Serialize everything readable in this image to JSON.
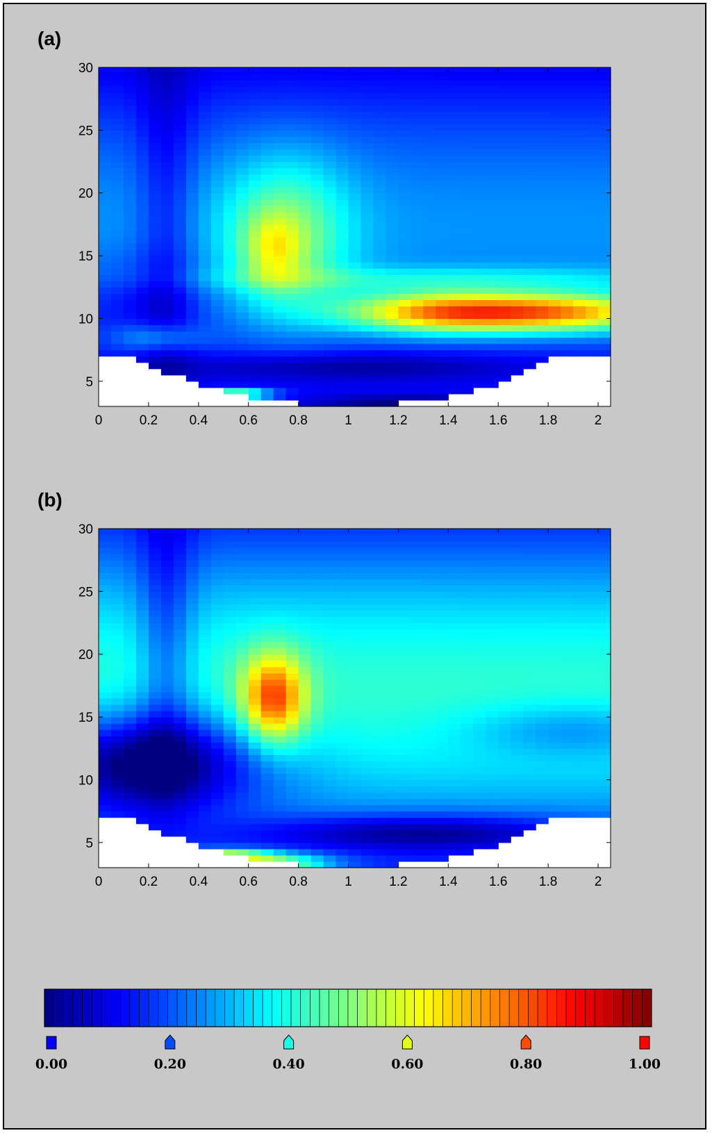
{
  "panels": [
    {
      "label": "(a)",
      "chart_data": {
        "type": "heatmap",
        "title": "",
        "xlabel": "",
        "ylabel": "",
        "xlim": [
          0,
          2.05
        ],
        "ylim": [
          3,
          30
        ],
        "x_ticks": [
          "0",
          "0.2",
          "0.4",
          "0.6",
          "0.8",
          "1",
          "1.2",
          "1.4",
          "1.6",
          "1.8",
          "2"
        ],
        "y_ticks": [
          "5",
          "10",
          "15",
          "20",
          "25",
          "30"
        ],
        "colormap": "jet",
        "clim": [
          0,
          1
        ],
        "cell_width": 0.05,
        "cell_height": 0.5,
        "mask_bottom_edge": [
          [
            0.0,
            7.0
          ],
          [
            0.15,
            7.0
          ],
          [
            0.3,
            5.5
          ],
          [
            0.5,
            4.2
          ],
          [
            0.7,
            3.4
          ],
          [
            1.0,
            3.0
          ],
          [
            1.3,
            3.4
          ],
          [
            1.5,
            4.2
          ],
          [
            1.7,
            5.5
          ],
          [
            1.85,
            7.0
          ],
          [
            2.05,
            7.0
          ]
        ],
        "features": [
          {
            "name": "background",
            "x": 1.0,
            "y": 17.0,
            "sx": 10,
            "sy": 10,
            "value": 0.27
          },
          {
            "name": "left_column_low",
            "x": 0.27,
            "y": 18.0,
            "sx": 0.08,
            "sy": 12,
            "value": -0.1
          },
          {
            "name": "lower_left_low",
            "x": 0.15,
            "y": 11.5,
            "sx": 0.2,
            "sy": 2.5,
            "value": -0.08
          },
          {
            "name": "mid_green",
            "x": 0.75,
            "y": 16.5,
            "sx": 0.18,
            "sy": 4.5,
            "value": 0.25
          },
          {
            "name": "mid_green_peak",
            "x": 0.7,
            "y": 15.5,
            "sx": 0.08,
            "sy": 2.0,
            "value": 0.15
          },
          {
            "name": "band_13",
            "x": 1.4,
            "y": 13.2,
            "sx": 0.7,
            "sy": 0.7,
            "value": 0.12
          },
          {
            "name": "orange_band",
            "x": 1.75,
            "y": 10.5,
            "sx": 0.4,
            "sy": 1.1,
            "value": 0.55
          },
          {
            "name": "orange_band_left",
            "x": 1.3,
            "y": 10.5,
            "sx": 0.25,
            "sy": 1.2,
            "value": 0.25
          },
          {
            "name": "low_strip_6",
            "x": 1.0,
            "y": 6.2,
            "sx": 0.55,
            "sy": 0.8,
            "value": -0.12
          },
          {
            "name": "cyan_spot",
            "x": 0.23,
            "y": 8.5,
            "sx": 0.12,
            "sy": 0.8,
            "value": 0.15
          },
          {
            "name": "row4_yellow",
            "x": 0.55,
            "y": 4.0,
            "sx": 0.1,
            "sy": 0.3,
            "value": 0.45
          },
          {
            "name": "row3_low",
            "x": 1.25,
            "y": 3.3,
            "sx": 0.25,
            "sy": 0.4,
            "value": -0.12
          }
        ]
      }
    },
    {
      "label": "(b)",
      "chart_data": {
        "type": "heatmap",
        "title": "",
        "xlabel": "",
        "ylabel": "",
        "xlim": [
          0,
          2.05
        ],
        "ylim": [
          3,
          30
        ],
        "x_ticks": [
          "0",
          "0.2",
          "0.4",
          "0.6",
          "0.8",
          "1",
          "1.2",
          "1.4",
          "1.6",
          "1.8",
          "2"
        ],
        "y_ticks": [
          "5",
          "10",
          "15",
          "20",
          "25",
          "30"
        ],
        "colormap": "jet",
        "clim": [
          0,
          1
        ],
        "cell_width": 0.05,
        "cell_height": 0.5,
        "mask_bottom_edge": [
          [
            0.0,
            7.0
          ],
          [
            0.15,
            7.0
          ],
          [
            0.3,
            5.5
          ],
          [
            0.5,
            4.2
          ],
          [
            0.7,
            3.4
          ],
          [
            1.0,
            3.0
          ],
          [
            1.3,
            3.4
          ],
          [
            1.5,
            4.2
          ],
          [
            1.7,
            5.5
          ],
          [
            1.85,
            7.0
          ],
          [
            2.05,
            7.0
          ]
        ],
        "features": [
          {
            "name": "background",
            "x": 1.0,
            "y": 17.0,
            "sx": 10,
            "sy": 10,
            "value": 0.42
          },
          {
            "name": "left_column_low",
            "x": 0.27,
            "y": 21.0,
            "sx": 0.08,
            "sy": 8,
            "value": -0.15
          },
          {
            "name": "dark_blue_region",
            "x": 0.2,
            "y": 11.5,
            "sx": 0.32,
            "sy": 2.8,
            "value": -0.38
          },
          {
            "name": "red_hotspot",
            "x": 0.7,
            "y": 16.5,
            "sx": 0.09,
            "sy": 2.5,
            "value": 0.42
          },
          {
            "name": "right_low_band",
            "x": 1.9,
            "y": 14.0,
            "sx": 0.3,
            "sy": 1.5,
            "value": -0.12
          },
          {
            "name": "low_strip_6",
            "x": 1.3,
            "y": 5.8,
            "sx": 0.45,
            "sy": 1.0,
            "value": -0.2
          },
          {
            "name": "row4_orange",
            "x": 0.5,
            "y": 4.1,
            "sx": 0.12,
            "sy": 0.3,
            "value": 0.3
          },
          {
            "name": "row3_red",
            "x": 0.65,
            "y": 3.3,
            "sx": 0.18,
            "sy": 0.6,
            "value": 0.45
          }
        ]
      }
    }
  ],
  "colorbar": {
    "min": 0,
    "max": 1,
    "steps": 64,
    "tick_values": [
      0.0,
      0.2,
      0.4,
      0.6,
      0.8,
      1.0
    ],
    "tick_labels": [
      "0.00",
      "0.20",
      "0.40",
      "0.60",
      "0.80",
      "1.00"
    ]
  }
}
